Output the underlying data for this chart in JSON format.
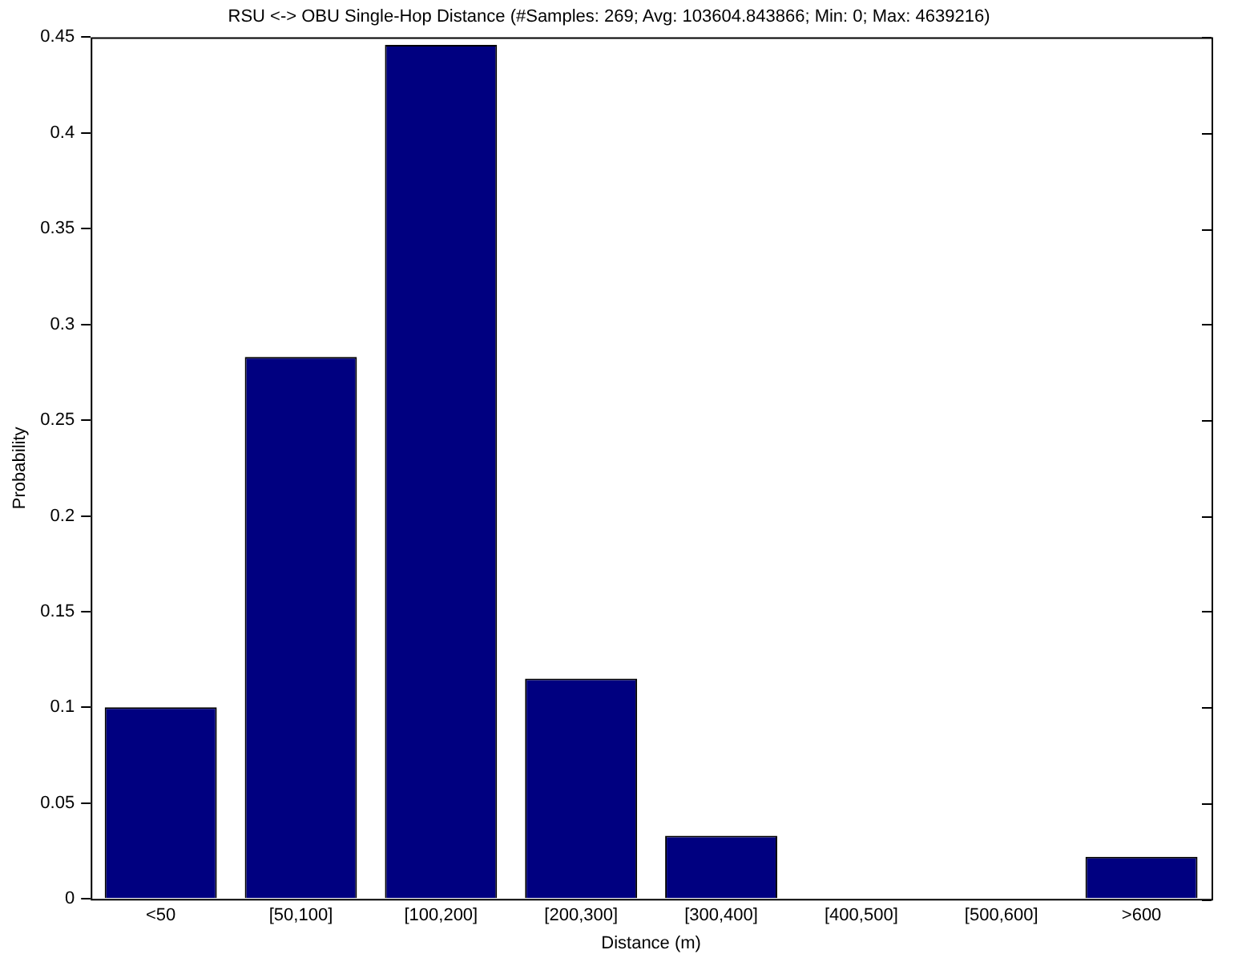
{
  "chart_data": {
    "type": "bar",
    "title": "RSU <-> OBU Single-Hop Distance (#Samples: 269; Avg: 103604.843866; Min: 0; Max: 4639216)",
    "xlabel": "Distance (m)",
    "ylabel": "Probability",
    "categories": [
      "<50",
      "[50,100]",
      "[100,200]",
      "[200,300]",
      "[300,400]",
      "[400,500]",
      "[500,600]",
      ">600"
    ],
    "values": [
      0.1,
      0.283,
      0.446,
      0.115,
      0.033,
      0,
      0,
      0.022
    ],
    "color": "#000080",
    "ylim": [
      0,
      0.45
    ],
    "yticks": [
      0,
      0.05,
      0.1,
      0.15,
      0.2,
      0.25,
      0.3,
      0.35,
      0.4,
      0.45
    ],
    "grid": false,
    "legend": false
  }
}
